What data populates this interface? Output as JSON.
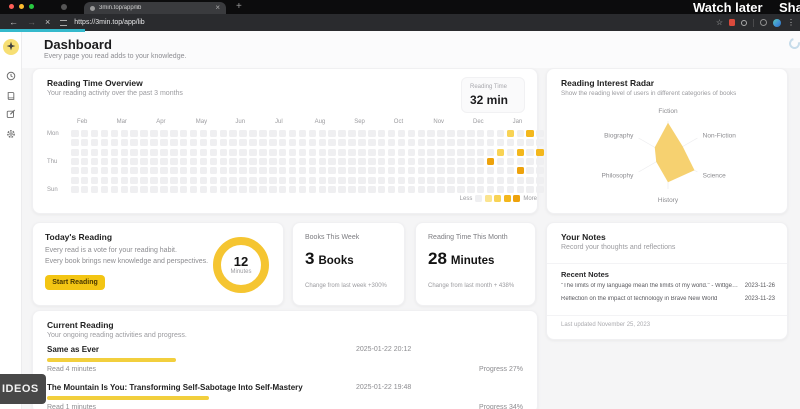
{
  "video_overlay": {
    "watch_later": "Watch later",
    "share": "Sha",
    "more_videos": "IDEOS"
  },
  "browser": {
    "tab_title": "3min.top/app/lib",
    "url": "https://3min.top/app/lib",
    "new_tab": "+"
  },
  "header": {
    "title": "Dashboard",
    "subtitle": "Every page you read adds to your knowledge."
  },
  "overview_card": {
    "title": "Reading Time Overview",
    "subtitle": "Your reading activity over the past 3 months",
    "badge_label": "Reading Time",
    "badge_value": "32 min",
    "legend_less": "Less",
    "legend_more": "More"
  },
  "radar_card": {
    "title": "Reading Interest Radar",
    "subtitle": "Show the reading level of users in different categories of books"
  },
  "today_card": {
    "title": "Today's Reading",
    "line1": "Every read is a vote for your reading habit.",
    "line2": "Every book brings new knowledge and perspectives.",
    "button_label": "Start Reading",
    "ring_value": "12",
    "ring_unit": "Minutes"
  },
  "books_card": {
    "title": "Books This Week",
    "value": "3",
    "unit": "Books",
    "change": "Change from last week +300%"
  },
  "month_card": {
    "title": "Reading Time This Month",
    "value": "28",
    "unit": "Minutes",
    "change": "Change from last month + 438%"
  },
  "notes_card": {
    "title": "Your Notes",
    "subtitle": "Record your thoughts and reflections",
    "recent_title": "Recent Notes",
    "notes": [
      {
        "text": "\"The limits of my language mean the limits of my world.\" - Wittgenstein",
        "date": "2023-11-26"
      },
      {
        "text": "Reflection on the impact of technology in Brave New World",
        "date": "2023-11-23"
      }
    ],
    "footer": "Last updated November 25, 2023"
  },
  "current_card": {
    "title": "Current Reading",
    "subtitle": "Your ongoing reading activities and progress.",
    "items": [
      {
        "title": "Same as Ever",
        "datetime": "2025-01-22 20:12",
        "read": "Read 4 minutes",
        "progress": 27,
        "progress_label": "Progress 27%"
      },
      {
        "title": "The Mountain Is You: Transforming Self-Sabotage Into Self-Mastery",
        "datetime": "2025-01-22 19:48",
        "read": "Read 1 minutes",
        "progress": 34,
        "progress_label": "Progress 34%"
      }
    ]
  },
  "colors": {
    "accent_yellow": "#f5c531",
    "accent_button": "#f3c513",
    "accent_bar": "#f2cf3d",
    "teal_loading": "#35b9cc",
    "heatmap_levels": [
      "#efeff1",
      "#fbe48f",
      "#f8d355",
      "#f3b71c",
      "#eda20c"
    ]
  },
  "chart_data": [
    {
      "type": "heatmap",
      "title": "Reading Time Overview",
      "x_labels": [
        "Feb",
        "Mar",
        "Apr",
        "May",
        "Jun",
        "Jul",
        "Aug",
        "Sep",
        "Oct",
        "Nov",
        "Dec",
        "Jan"
      ],
      "y_labels": [
        "Mon",
        "Thu",
        "Sun"
      ],
      "rows": 7,
      "cols": 48,
      "legend": [
        "Less",
        "More"
      ],
      "highlighted_cells": [
        {
          "col": 44,
          "row": 0,
          "level": 2
        },
        {
          "col": 46,
          "row": 0,
          "level": 3
        },
        {
          "col": 43,
          "row": 2,
          "level": 2
        },
        {
          "col": 45,
          "row": 2,
          "level": 3
        },
        {
          "col": 47,
          "row": 2,
          "level": 3
        },
        {
          "col": 42,
          "row": 3,
          "level": 4
        },
        {
          "col": 45,
          "row": 4,
          "level": 4
        }
      ]
    },
    {
      "type": "radar",
      "title": "Reading Interest Radar",
      "categories": [
        "Fiction",
        "Non-Fiction",
        "Science",
        "History",
        "Philosophy",
        "Biography"
      ],
      "values": [
        0.95,
        0.5,
        0.9,
        0.8,
        0.4,
        0.45
      ],
      "value_range": [
        0,
        1
      ]
    }
  ]
}
